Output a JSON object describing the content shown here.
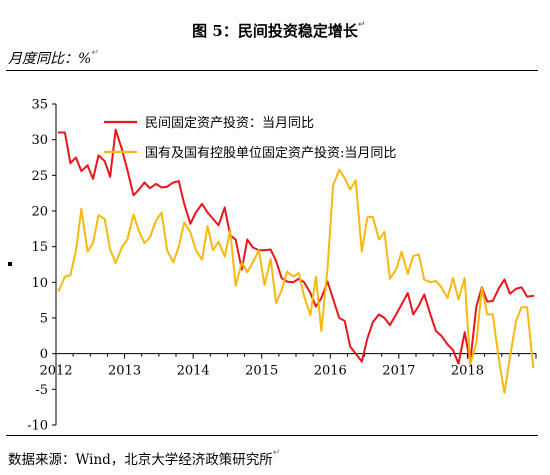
{
  "figure": {
    "title": "图 5：民间投资稳定增长",
    "unit_label": "月度同比：%",
    "source": "数据来源：Wind，北京大学经济政策研究所",
    "para_mark": "↵"
  },
  "chart_data": {
    "type": "line",
    "xlabel": "",
    "ylabel": "",
    "xlim": [
      2012.0,
      2019.0
    ],
    "ylim": [
      -10,
      35
    ],
    "yticks": [
      -10,
      -5,
      0,
      5,
      10,
      15,
      20,
      25,
      30,
      35
    ],
    "xticks": [
      "2012",
      "2013",
      "2014",
      "2015",
      "2016",
      "2017",
      "2018"
    ],
    "grid": false,
    "legend_position": "top-left",
    "series": [
      {
        "name": "民间固定资产投资：当月同比",
        "color": "#e8161c",
        "x": [
          2012.04,
          2012.13,
          2012.21,
          2012.29,
          2012.37,
          2012.46,
          2012.54,
          2012.62,
          2012.71,
          2012.79,
          2012.87,
          2012.96,
          2013.04,
          2013.13,
          2013.21,
          2013.29,
          2013.37,
          2013.46,
          2013.54,
          2013.62,
          2013.71,
          2013.79,
          2013.87,
          2013.96,
          2014.04,
          2014.13,
          2014.21,
          2014.29,
          2014.37,
          2014.46,
          2014.54,
          2014.62,
          2014.71,
          2014.79,
          2014.87,
          2014.96,
          2015.04,
          2015.13,
          2015.21,
          2015.29,
          2015.37,
          2015.46,
          2015.54,
          2015.62,
          2015.71,
          2015.79,
          2015.87,
          2015.96,
          2016.04,
          2016.13,
          2016.21,
          2016.29,
          2016.37,
          2016.46,
          2016.54,
          2016.62,
          2016.71,
          2016.79,
          2016.87,
          2016.96,
          2017.04,
          2017.13,
          2017.21,
          2017.29,
          2017.37,
          2017.46,
          2017.54,
          2017.62,
          2017.71,
          2017.79,
          2017.87,
          2017.96,
          2018.04,
          2018.13,
          2018.21,
          2018.29,
          2018.37,
          2018.46,
          2018.54,
          2018.62,
          2018.71,
          2018.79,
          2018.87,
          2018.96
        ],
        "values": [
          31.0,
          31.0,
          26.7,
          27.5,
          25.6,
          26.4,
          24.5,
          27.8,
          27.0,
          24.8,
          31.4,
          28.7,
          25.8,
          22.2,
          23.0,
          24.0,
          23.2,
          23.8,
          23.3,
          23.4,
          24.0,
          24.2,
          21.0,
          18.2,
          19.8,
          21.0,
          19.8,
          18.9,
          18.0,
          20.5,
          16.6,
          16.0,
          11.8,
          16.0,
          14.9,
          14.5,
          14.5,
          14.6,
          13.0,
          10.6,
          10.1,
          10.0,
          10.5,
          10.0,
          8.5,
          6.6,
          7.8,
          10.1,
          7.7,
          5.0,
          4.6,
          1.0,
          0.0,
          -1.1,
          2.1,
          4.4,
          5.5,
          5.0,
          4.0,
          5.5,
          6.9,
          8.5,
          5.5,
          6.7,
          8.3,
          5.5,
          3.2,
          2.5,
          1.3,
          0.5,
          -1.4,
          3.0,
          -1.2,
          6.6,
          9.3,
          7.3,
          7.4,
          9.2,
          10.4,
          8.4,
          9.1,
          9.3,
          8.0,
          8.1
        ]
      },
      {
        "name": "国有及国有控股单位固定资产投资:当月同比",
        "color": "#f7b80f",
        "x": [
          2012.04,
          2012.13,
          2012.21,
          2012.29,
          2012.37,
          2012.46,
          2012.54,
          2012.62,
          2012.71,
          2012.79,
          2012.87,
          2012.96,
          2013.04,
          2013.13,
          2013.21,
          2013.29,
          2013.37,
          2013.46,
          2013.54,
          2013.62,
          2013.71,
          2013.79,
          2013.87,
          2013.96,
          2014.04,
          2014.13,
          2014.21,
          2014.29,
          2014.37,
          2014.46,
          2014.54,
          2014.62,
          2014.71,
          2014.79,
          2014.87,
          2014.96,
          2015.04,
          2015.13,
          2015.21,
          2015.29,
          2015.37,
          2015.46,
          2015.54,
          2015.62,
          2015.71,
          2015.79,
          2015.87,
          2015.96,
          2016.04,
          2016.13,
          2016.21,
          2016.29,
          2016.37,
          2016.46,
          2016.54,
          2016.62,
          2016.71,
          2016.79,
          2016.87,
          2016.96,
          2017.04,
          2017.13,
          2017.21,
          2017.29,
          2017.37,
          2017.46,
          2017.54,
          2017.62,
          2017.71,
          2017.79,
          2017.87,
          2017.96,
          2018.04,
          2018.13,
          2018.21,
          2018.29,
          2018.37,
          2018.46,
          2018.54,
          2018.62,
          2018.71,
          2018.79,
          2018.87,
          2018.96
        ],
        "values": [
          8.8,
          10.8,
          11.0,
          14.4,
          20.3,
          14.3,
          15.5,
          19.4,
          18.9,
          14.6,
          12.7,
          14.9,
          16.0,
          19.5,
          17.2,
          15.5,
          16.3,
          18.7,
          19.8,
          14.5,
          12.8,
          15.0,
          18.4,
          17.0,
          14.5,
          13.2,
          17.9,
          14.5,
          15.7,
          13.6,
          17.3,
          9.5,
          12.8,
          11.4,
          12.8,
          14.5,
          9.6,
          13.3,
          7.1,
          8.9,
          11.5,
          10.8,
          11.3,
          8.0,
          5.4,
          10.8,
          3.2,
          12.0,
          23.5,
          25.8,
          24.6,
          23.0,
          24.3,
          14.3,
          19.1,
          19.2,
          16.0,
          17.1,
          10.5,
          11.8,
          14.3,
          11.2,
          13.7,
          13.9,
          10.4,
          10.0,
          10.2,
          9.3,
          7.8,
          10.6,
          7.6,
          10.6,
          -1.5,
          1.5,
          9.2,
          5.5,
          5.5,
          -0.9,
          -5.5,
          -0.5,
          4.6,
          6.5,
          6.5,
          -1.9
        ]
      }
    ]
  }
}
